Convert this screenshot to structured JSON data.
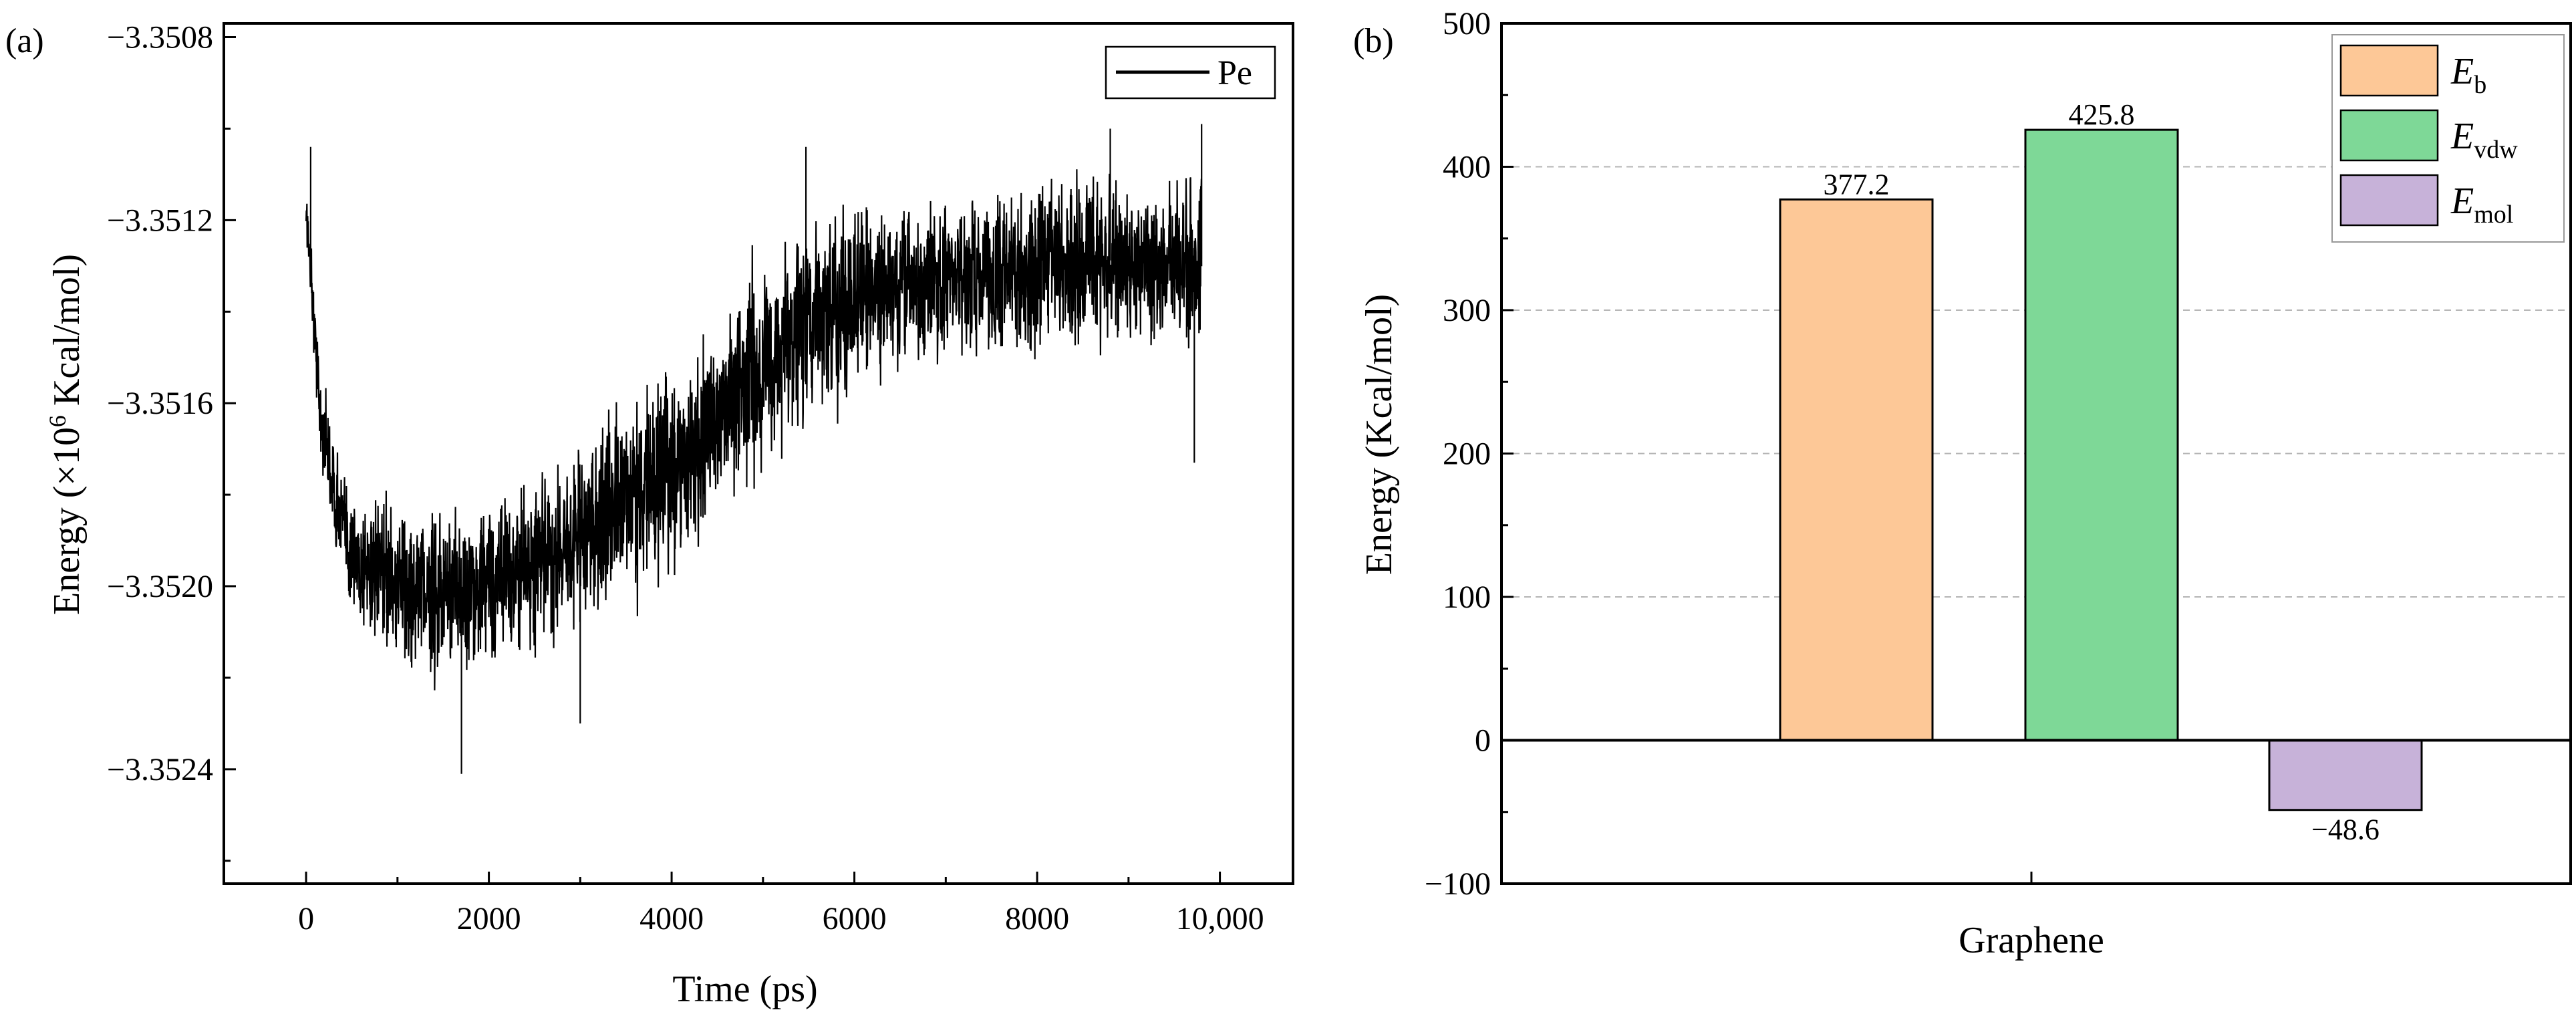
{
  "panels": [
    {
      "label": "(a)"
    },
    {
      "label": "(b)"
    }
  ],
  "chart_data": [
    {
      "type": "line",
      "xlabel": "Time (ps)",
      "ylabel": {
        "prefix": "Energy (×10",
        "sup": "6",
        "suffix": " Kcal/mol)"
      },
      "xlim": [
        -900,
        10800
      ],
      "ylim": [
        -3.35265,
        -3.35077
      ],
      "xticks": [
        0,
        2000,
        4000,
        6000,
        8000,
        10000
      ],
      "xtick_labels": [
        "0",
        "2000",
        "4000",
        "6000",
        "8000",
        "10,000"
      ],
      "yticks": [
        -3.3508,
        -3.3512,
        -3.3516,
        -3.352,
        -3.3524
      ],
      "ytick_labels": [
        "−3.3508",
        "−3.3512",
        "−3.3516",
        "−3.3520",
        "−3.3524"
      ],
      "grid": false,
      "legend": {
        "position": "top-right",
        "entries": [
          "Pe"
        ]
      },
      "series": [
        {
          "name": "Pe",
          "color": "#000000",
          "x_start": 0,
          "x_end": 9800,
          "envelope_x": [
            0,
            60,
            150,
            300,
            500,
            800,
            1200,
            1700,
            2200,
            2700,
            3200,
            3700,
            4200,
            4700,
            5200,
            5700,
            6200,
            6700,
            7200,
            7700,
            8200,
            8700,
            9200,
            9800
          ],
          "envelope_min": [
            -3.35125,
            -3.35145,
            -3.35175,
            -3.35193,
            -3.35212,
            -3.35218,
            -3.35222,
            -3.35226,
            -3.3522,
            -3.35218,
            -3.35212,
            -3.35208,
            -3.35198,
            -3.35185,
            -3.35175,
            -3.35168,
            -3.3516,
            -3.35158,
            -3.35155,
            -3.35155,
            -3.35155,
            -3.35152,
            -3.35155,
            -3.35155
          ],
          "envelope_max": [
            -3.35108,
            -3.35122,
            -3.3515,
            -3.35165,
            -3.35175,
            -3.35178,
            -3.3518,
            -3.35178,
            -3.35175,
            -3.35168,
            -3.3516,
            -3.3515,
            -3.35145,
            -3.3513,
            -3.3512,
            -3.35112,
            -3.35112,
            -3.35112,
            -3.35108,
            -3.35108,
            -3.35105,
            -3.35105,
            -3.35105,
            -3.35102
          ],
          "spikes": [
            {
              "x": 50,
              "y": -3.35104
            },
            {
              "x": 1700,
              "y": -3.35241
            },
            {
              "x": 5470,
              "y": -3.35104
            },
            {
              "x": 8800,
              "y": -3.351
            },
            {
              "x": 9800,
              "y": -3.35099
            },
            {
              "x": 9720,
              "y": -3.35173
            },
            {
              "x": 3000,
              "y": -3.3523
            }
          ]
        }
      ]
    },
    {
      "type": "bar",
      "xlabel": "Graphene",
      "ylabel": "Energy (Kcal/mol)",
      "ylim": [
        -100,
        500
      ],
      "yticks": [
        -100,
        0,
        100,
        200,
        300,
        400,
        500
      ],
      "ytick_labels": [
        "−100",
        "0",
        "100",
        "200",
        "300",
        "400",
        "500"
      ],
      "grid": "y-dashed",
      "legend": {
        "position": "top-right"
      },
      "series": [
        {
          "name": {
            "main": "E",
            "sub": "b"
          },
          "value": 377.2,
          "label": "377.2",
          "color": "#FDC897"
        },
        {
          "name": {
            "main": "E",
            "sub": "vdw"
          },
          "value": 425.8,
          "label": "425.8",
          "color": "#7ED897"
        },
        {
          "name": {
            "main": "E",
            "sub": "mol"
          },
          "value": -48.6,
          "label": "−48.6",
          "color": "#C7B2D9"
        }
      ]
    }
  ]
}
